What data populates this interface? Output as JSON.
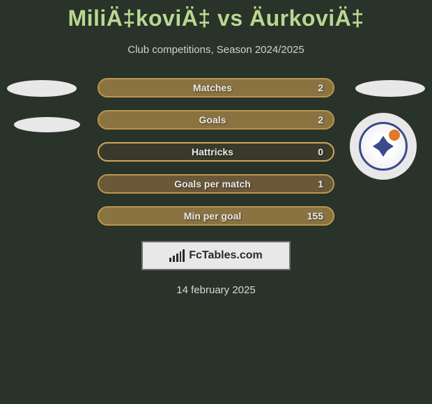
{
  "title": "MiliÄ‡koviÄ‡ vs ÄurkoviÄ‡",
  "subtitle": "Club competitions, Season 2024/2025",
  "colors": {
    "background": "#2a332a",
    "title": "#b8d890",
    "text": "#d0d0d0",
    "bar_text": "#e8e8e8",
    "ellipse": "#e8e8e8",
    "box_border": "#707070",
    "box_bg": "#e8e8e8",
    "fctables_text": "#2a2a2a"
  },
  "stats": [
    {
      "label": "Matches",
      "value_right": "2",
      "border_color": "#b89850",
      "bg_color": "#8a7340"
    },
    {
      "label": "Goals",
      "value_right": "2",
      "border_color": "#b89850",
      "bg_color": "#8a7340"
    },
    {
      "label": "Hattricks",
      "value_right": "0",
      "border_color": "#d0a858",
      "bg_color": "#3a3a2a"
    },
    {
      "label": "Goals per match",
      "value_right": "1",
      "border_color": "#b89850",
      "bg_color": "#6a5838"
    },
    {
      "label": "Min per goal",
      "value_right": "155",
      "border_color": "#b89850",
      "bg_color": "#8a7340"
    }
  ],
  "fctables": {
    "label": "FcTables.com"
  },
  "date": "14 february 2025"
}
